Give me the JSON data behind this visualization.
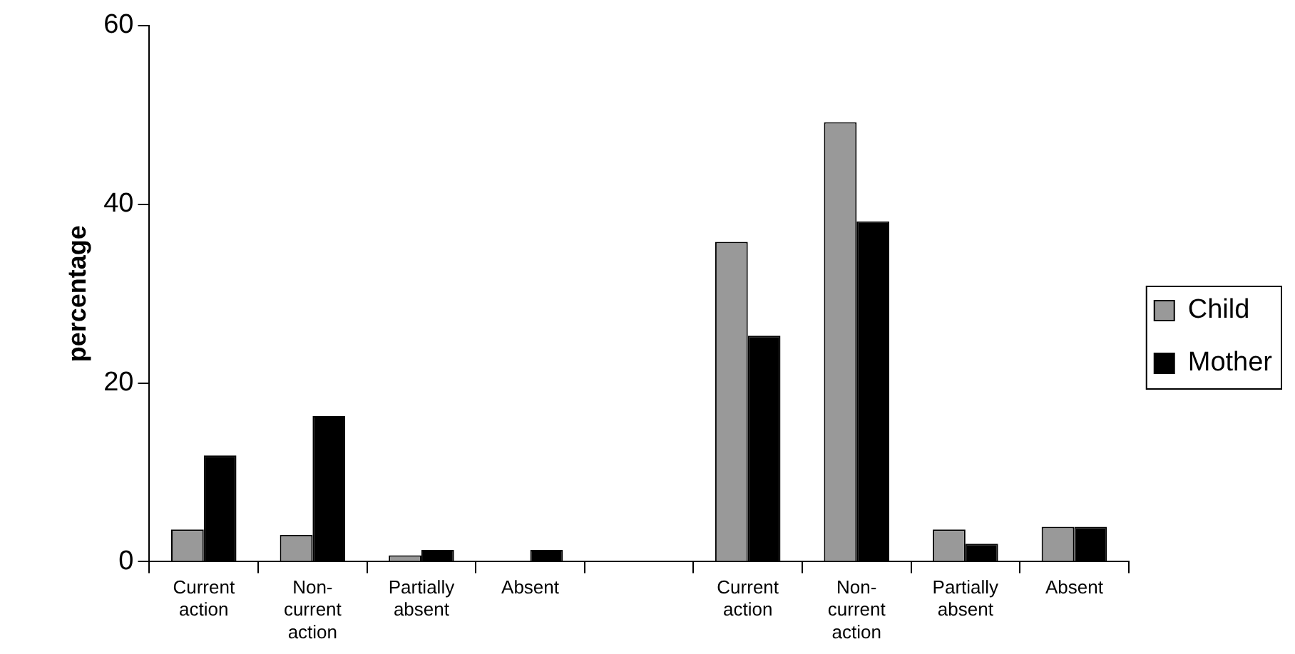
{
  "chart_data": {
    "type": "bar",
    "ylabel": "percentage",
    "categories": [
      "Current action",
      "Non-current action",
      "Partially absent",
      "Absent",
      null,
      "Current action",
      "Non-current action",
      "Partially absent",
      "Absent"
    ],
    "series": [
      {
        "name": "Child",
        "color": "#999999",
        "values": [
          3.6,
          3.0,
          0.7,
          0,
          null,
          35.8,
          49.2,
          3.6,
          3.9
        ]
      },
      {
        "name": "Mother",
        "color": "#000000",
        "values": [
          11.9,
          16.3,
          1.3,
          1.3,
          null,
          25.3,
          38.1,
          2.0,
          3.9
        ]
      }
    ],
    "ylim": [
      0,
      60
    ],
    "yticks": [
      0,
      20,
      40,
      60
    ],
    "grid": false,
    "legend": "right"
  }
}
